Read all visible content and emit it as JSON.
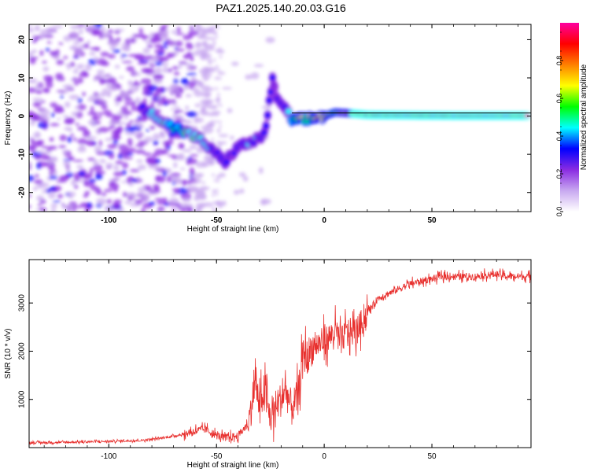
{
  "title": "PAZ1.2025.140.20.03.G16",
  "chart_data": [
    {
      "type": "heatmap",
      "name": "spectrogram",
      "xlabel": "Height of straight line (km)",
      "ylabel": "Frequency (Hz)",
      "xlim": [
        -137,
        96
      ],
      "ylim": [
        -25,
        24
      ],
      "xticks": [
        -100,
        -50,
        0,
        50
      ],
      "yticks": [
        -20,
        -10,
        0,
        10,
        20
      ],
      "colorbar": {
        "label": "Normalized spectral amplitude",
        "range": [
          0.0,
          1.0
        ],
        "ticks": [
          "0.0",
          "0.2",
          "0.4",
          "0.6",
          "0.8"
        ],
        "colors": [
          "#ffffff",
          "#c8a8f0",
          "#8a2be2",
          "#0000ff",
          "#00ffff",
          "#00ff00",
          "#ffff00",
          "#ff8000",
          "#ff0000",
          "#ff00a0"
        ]
      },
      "track": [
        {
          "x": -85,
          "y": 2,
          "a": 0.3
        },
        {
          "x": -78,
          "y": 0,
          "a": 0.45
        },
        {
          "x": -72,
          "y": -2.5,
          "a": 0.5
        },
        {
          "x": -65,
          "y": -4,
          "a": 0.5
        },
        {
          "x": -58,
          "y": -6,
          "a": 0.45
        },
        {
          "x": -50,
          "y": -10,
          "a": 0.3
        },
        {
          "x": -46,
          "y": -12,
          "a": 0.25
        },
        {
          "x": -40,
          "y": -8,
          "a": 0.3
        },
        {
          "x": -35,
          "y": -7,
          "a": 0.35
        },
        {
          "x": -30,
          "y": -6,
          "a": 0.35
        },
        {
          "x": -27,
          "y": -3,
          "a": 0.3
        },
        {
          "x": -24,
          "y": 10,
          "a": 0.25
        },
        {
          "x": -22,
          "y": 4,
          "a": 0.25
        },
        {
          "x": -18,
          "y": 2,
          "a": 0.3
        },
        {
          "x": -15,
          "y": -1,
          "a": 0.5
        },
        {
          "x": -10,
          "y": -1,
          "a": 0.6
        },
        {
          "x": -5,
          "y": -0.5,
          "a": 0.65
        },
        {
          "x": 0,
          "y": 0,
          "a": 0.7
        },
        {
          "x": 5,
          "y": 1,
          "a": 0.6
        },
        {
          "x": 10,
          "y": 0.8,
          "a": 0.7
        },
        {
          "x": 20,
          "y": 0.3,
          "a": 0.85
        },
        {
          "x": 40,
          "y": 0.2,
          "a": 0.95
        },
        {
          "x": 60,
          "y": 0.1,
          "a": 0.95
        },
        {
          "x": 80,
          "y": 0.1,
          "a": 0.95
        },
        {
          "x": 95,
          "y": 0.1,
          "a": 0.95
        }
      ]
    },
    {
      "type": "line",
      "name": "snr",
      "xlabel": "Height of straight line (km)",
      "ylabel": "SNR (10 * v/v)",
      "xlim": [
        -137,
        96
      ],
      "ylim": [
        0,
        3900
      ],
      "xticks": [
        -100,
        -50,
        0,
        50
      ],
      "yticks": [
        1000,
        2000,
        3000
      ],
      "color": "#e8302e",
      "series": [
        {
          "x": [
            -137,
            -120,
            -100,
            -85,
            -75,
            -65,
            -60,
            -55,
            -50,
            -45,
            -40,
            -35,
            -32,
            -30,
            -28,
            -25,
            -22,
            -20,
            -18,
            -15,
            -12,
            -10,
            -8,
            -5,
            0,
            5,
            8,
            10,
            15,
            20,
            25,
            30,
            35,
            40,
            45,
            50,
            55,
            60,
            65,
            70,
            75,
            80,
            85,
            90,
            96
          ],
          "y": [
            100,
            110,
            130,
            150,
            200,
            280,
            350,
            380,
            250,
            200,
            250,
            500,
            1400,
            800,
            1200,
            600,
            900,
            1000,
            1200,
            800,
            1100,
            1900,
            1900,
            2100,
            2200,
            2400,
            2200,
            2400,
            2400,
            2800,
            3100,
            3200,
            3300,
            3400,
            3450,
            3500,
            3550,
            3550,
            3550,
            3550,
            3580,
            3600,
            3550,
            3550,
            3550
          ]
        }
      ]
    }
  ]
}
